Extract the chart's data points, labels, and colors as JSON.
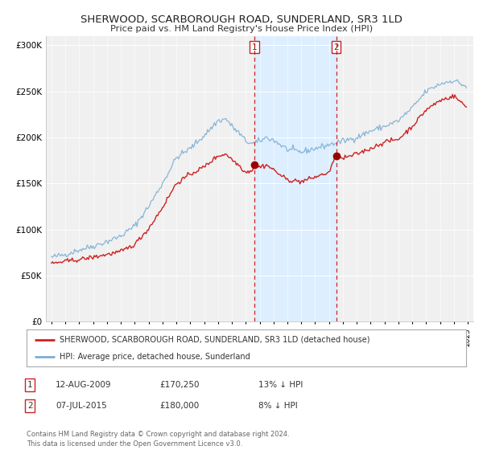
{
  "title": "SHERWOOD, SCARBOROUGH ROAD, SUNDERLAND, SR3 1LD",
  "subtitle": "Price paid vs. HM Land Registry's House Price Index (HPI)",
  "bg_color": "#ffffff",
  "plot_bg_color": "#f0f0f0",
  "grid_color": "#ffffff",
  "hpi_color": "#7bafd4",
  "price_color": "#cc2222",
  "marker_color": "#990000",
  "shade_color": "#ddeeff",
  "ylim": [
    0,
    310000
  ],
  "yticks": [
    0,
    50000,
    100000,
    150000,
    200000,
    250000,
    300000
  ],
  "ytick_labels": [
    "£0",
    "£50K",
    "£100K",
    "£150K",
    "£200K",
    "£250K",
    "£300K"
  ],
  "sale1_date_num": 2009.615,
  "sale1_price": 170250,
  "sale2_date_num": 2015.515,
  "sale2_price": 180000,
  "legend_line1": "SHERWOOD, SCARBOROUGH ROAD, SUNDERLAND, SR3 1LD (detached house)",
  "legend_line2": "HPI: Average price, detached house, Sunderland",
  "sale1_date_str": "12-AUG-2009",
  "sale1_price_str": "£170,250",
  "sale1_pct": "13% ↓ HPI",
  "sale2_date_str": "07-JUL-2015",
  "sale2_price_str": "£180,000",
  "sale2_pct": "8% ↓ HPI",
  "footnote": "Contains HM Land Registry data © Crown copyright and database right 2024.\nThis data is licensed under the Open Government Licence v3.0."
}
